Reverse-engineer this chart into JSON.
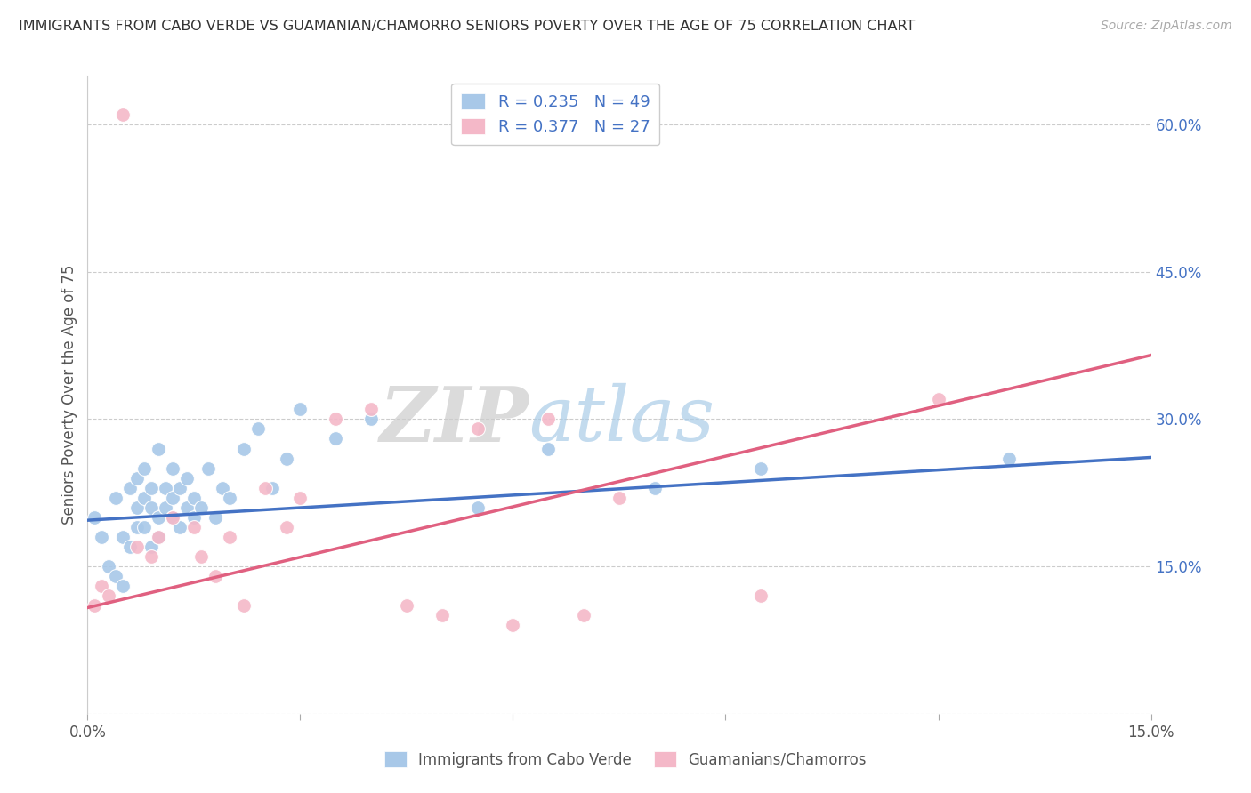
{
  "title": "IMMIGRANTS FROM CABO VERDE VS GUAMANIAN/CHAMORRO SENIORS POVERTY OVER THE AGE OF 75 CORRELATION CHART",
  "source": "Source: ZipAtlas.com",
  "ylabel": "Seniors Poverty Over the Age of 75",
  "xlim": [
    0.0,
    0.15
  ],
  "ylim": [
    0.0,
    0.65
  ],
  "y_ticks_right": [
    0.0,
    0.15,
    0.3,
    0.45,
    0.6
  ],
  "y_tick_labels_right": [
    "",
    "15.0%",
    "30.0%",
    "45.0%",
    "60.0%"
  ],
  "legend_label_blue": "Immigrants from Cabo Verde",
  "legend_label_pink": "Guamanians/Chamorros",
  "R_blue": 0.235,
  "N_blue": 49,
  "R_pink": 0.377,
  "N_pink": 27,
  "blue_color": "#a8c8e8",
  "pink_color": "#f4b8c8",
  "blue_line_color": "#4472c4",
  "pink_line_color": "#e06080",
  "legend_text_color": "#4472c4",
  "grid_color": "#cccccc",
  "cabo_verde_x": [
    0.001,
    0.002,
    0.003,
    0.004,
    0.004,
    0.005,
    0.005,
    0.006,
    0.006,
    0.007,
    0.007,
    0.007,
    0.008,
    0.008,
    0.008,
    0.009,
    0.009,
    0.009,
    0.01,
    0.01,
    0.01,
    0.011,
    0.011,
    0.012,
    0.012,
    0.012,
    0.013,
    0.013,
    0.014,
    0.014,
    0.015,
    0.015,
    0.016,
    0.017,
    0.018,
    0.019,
    0.02,
    0.022,
    0.024,
    0.026,
    0.028,
    0.03,
    0.035,
    0.04,
    0.055,
    0.065,
    0.08,
    0.095,
    0.13
  ],
  "cabo_verde_y": [
    0.2,
    0.18,
    0.15,
    0.22,
    0.14,
    0.13,
    0.18,
    0.17,
    0.23,
    0.19,
    0.21,
    0.24,
    0.22,
    0.25,
    0.19,
    0.17,
    0.21,
    0.23,
    0.18,
    0.2,
    0.27,
    0.21,
    0.23,
    0.2,
    0.22,
    0.25,
    0.19,
    0.23,
    0.21,
    0.24,
    0.2,
    0.22,
    0.21,
    0.25,
    0.2,
    0.23,
    0.22,
    0.27,
    0.29,
    0.23,
    0.26,
    0.31,
    0.28,
    0.3,
    0.21,
    0.27,
    0.23,
    0.25,
    0.26
  ],
  "guamanian_x": [
    0.001,
    0.002,
    0.003,
    0.005,
    0.007,
    0.009,
    0.01,
    0.012,
    0.015,
    0.016,
    0.018,
    0.02,
    0.022,
    0.025,
    0.028,
    0.03,
    0.035,
    0.04,
    0.045,
    0.05,
    0.055,
    0.06,
    0.065,
    0.07,
    0.075,
    0.095,
    0.12
  ],
  "guamanian_y": [
    0.11,
    0.13,
    0.12,
    0.61,
    0.17,
    0.16,
    0.18,
    0.2,
    0.19,
    0.16,
    0.14,
    0.18,
    0.11,
    0.23,
    0.19,
    0.22,
    0.3,
    0.31,
    0.11,
    0.1,
    0.29,
    0.09,
    0.3,
    0.1,
    0.22,
    0.12,
    0.32
  ],
  "blue_trend_x0": 0.0,
  "blue_trend_x1": 0.15,
  "blue_trend_y0": 0.197,
  "blue_trend_y1": 0.261,
  "pink_trend_x0": 0.0,
  "pink_trend_x1": 0.15,
  "pink_trend_y0": 0.108,
  "pink_trend_y1": 0.365
}
